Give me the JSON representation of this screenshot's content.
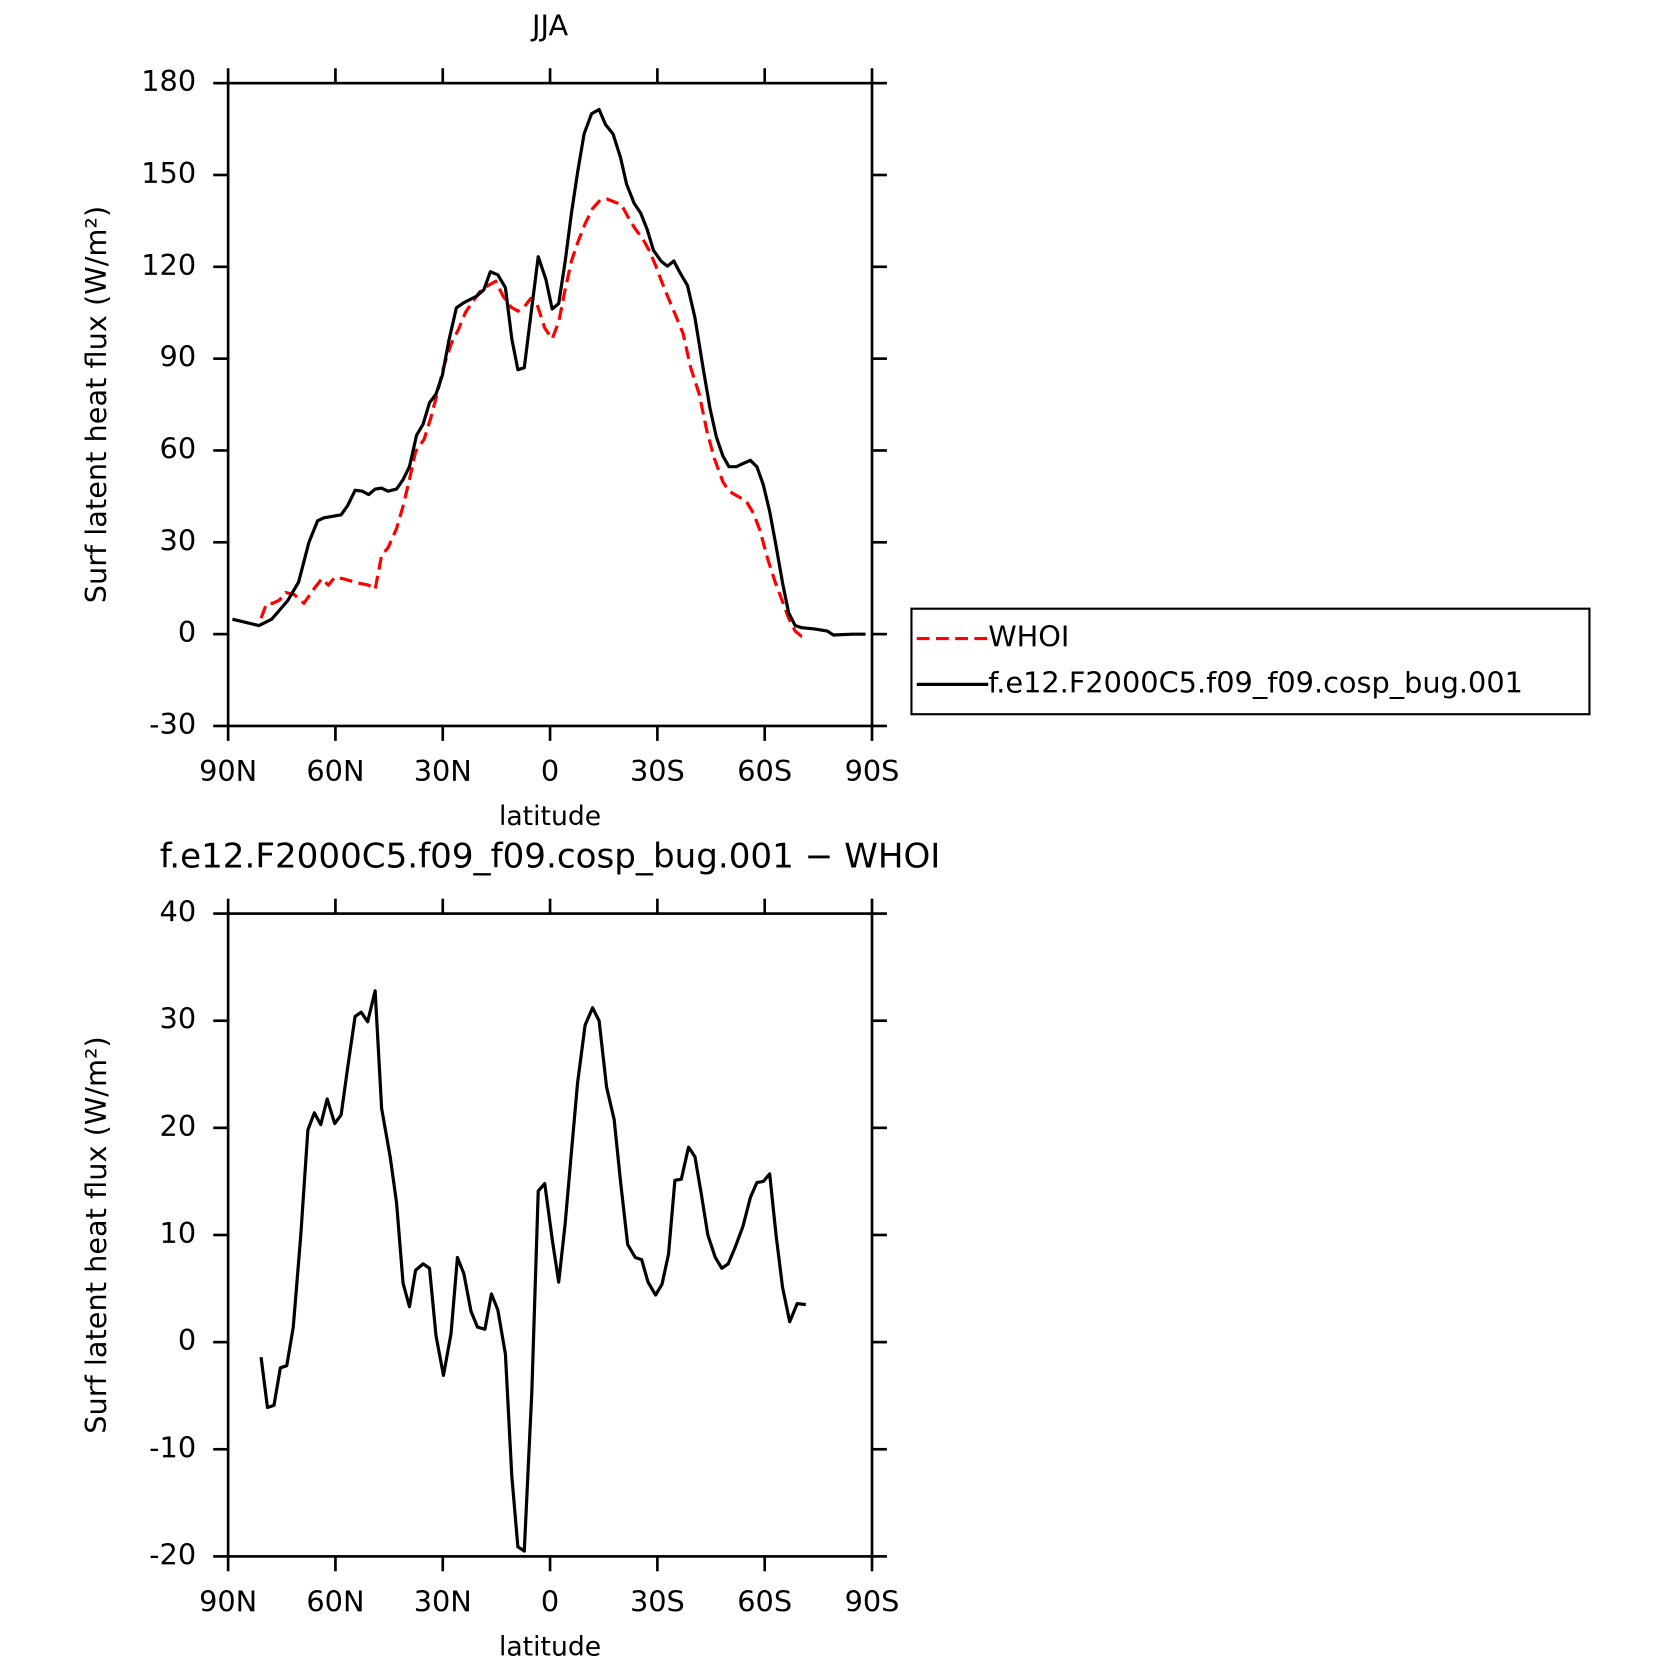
{
  "chart_data": [
    {
      "type": "line",
      "title": "JJA",
      "xlabel": "latitude",
      "ylabel": "Surf latent heat flux (W/m²)",
      "xlim": [
        90,
        -90
      ],
      "ylim": [
        -30,
        180
      ],
      "xticks": [
        {
          "value": 90,
          "label": "90N"
        },
        {
          "value": 60,
          "label": "60N"
        },
        {
          "value": 30,
          "label": "30N"
        },
        0,
        {
          "value": -30,
          "label": "30S"
        },
        {
          "value": -60,
          "label": "60S"
        },
        {
          "value": -90,
          "label": "90S"
        }
      ],
      "yticks": [
        -30,
        0,
        30,
        60,
        90,
        120,
        150,
        180
      ],
      "legend": "right",
      "series": [
        {
          "name": "WHOI",
          "color": "#ff0000",
          "dash": true,
          "x": [
            80.8,
            79.3,
            77.5,
            75.7,
            73.9,
            71.5,
            68.8,
            65.9,
            63.8,
            62,
            60.2,
            57.8,
            53.6,
            50.7,
            48.9,
            47.1,
            45.3,
            42.9,
            41.1,
            39.3,
            37.6,
            35.2,
            33.4,
            31.6,
            29.8,
            27.7,
            25.6,
            23.6,
            21.8,
            19.7,
            17.3,
            15.2,
            13.1,
            11,
            9,
            7.2,
            5.4,
            3.6,
            1.5,
            -0.6,
            -2.4,
            -4.2,
            -6,
            -7.7,
            -9.8,
            -11.9,
            -14,
            -16,
            -18.2,
            -19.9,
            -21.7,
            -23.8,
            -25.9,
            -27.7,
            -29.5,
            -31.3,
            -33.1,
            -35.1,
            -37.2,
            -39.3,
            -41.7,
            -43.8,
            -45.9,
            -48.3,
            -50,
            -52.1,
            -54.8,
            -56.9,
            -58.7,
            -60.8,
            -62.9,
            -64.7,
            -66.7,
            -68.5,
            -70.3,
            -71.5
          ],
          "values": [
            5.2,
            9.8,
            10.1,
            11.1,
            13.6,
            12.9,
            10.1,
            15,
            18.1,
            16,
            18.5,
            18.1,
            16.7,
            16,
            14.6,
            25.8,
            28.2,
            34.5,
            41.8,
            50.5,
            59.6,
            63.7,
            70.4,
            78.4,
            87.1,
            94.7,
            99.6,
            105.2,
            108.3,
            111.8,
            113.9,
            115.3,
            110.4,
            106.9,
            105.5,
            106.9,
            109.7,
            107.6,
            100,
            96.5,
            102,
            112.5,
            121.9,
            127.8,
            134.1,
            139,
            141.8,
            142.1,
            141.1,
            140.4,
            136.5,
            132.4,
            129.2,
            125.4,
            120.5,
            114.9,
            109.7,
            104.1,
            98.2,
            87.1,
            78.4,
            66.5,
            57.5,
            49.8,
            46.7,
            45.3,
            43.5,
            39.4,
            33.8,
            24.7,
            17.1,
            11.5,
            5.2,
            1,
            -0.7,
            -1
          ]
        },
        {
          "name": "f.e12.F2000C5.f09_f09.cosp_bug.001",
          "color": "#000000",
          "dash": false,
          "x": [
            88.8,
            81.4,
            77.8,
            73.3,
            70.3,
            67.4,
            65,
            63.2,
            58.4,
            56.6,
            54.5,
            52.5,
            50.7,
            48.9,
            47.1,
            45.3,
            42.9,
            41.1,
            39.3,
            37.3,
            35.5,
            33.7,
            31.9,
            30.1,
            28.3,
            26.2,
            24.1,
            20.6,
            18.5,
            16.7,
            14.6,
            12.5,
            10.7,
            9,
            7.2,
            5.4,
            3.3,
            1.2,
            -0.6,
            -2.4,
            -4.2,
            -6,
            -7.7,
            -9.5,
            -11.6,
            -13.7,
            -15.5,
            -17.6,
            -19.7,
            -21.4,
            -23.5,
            -25.3,
            -27.1,
            -28.9,
            -31,
            -32.8,
            -34.6,
            -36.3,
            -38.4,
            -40.5,
            -42.9,
            -44.7,
            -46.5,
            -48.3,
            -50,
            -52.1,
            -53.9,
            -56,
            -57.8,
            -59.6,
            -61.4,
            -63.2,
            -65,
            -66.7,
            -68.5,
            -70.3,
            -73.9,
            -77.5,
            -79.2,
            -84.6,
            -88.2
          ],
          "values": [
            4.9,
            2.8,
            4.9,
            11,
            17,
            30,
            37,
            38,
            39,
            42,
            47,
            46.7,
            45.6,
            47.4,
            47.7,
            46.7,
            47.4,
            50.5,
            54.7,
            65,
            68.6,
            75.6,
            78.4,
            84.6,
            95.8,
            106.6,
            108.3,
            110.4,
            112.5,
            118.4,
            117.4,
            113.2,
            96.5,
            86.4,
            87,
            104,
            123.3,
            116,
            106.2,
            108,
            121.6,
            137.6,
            150.8,
            163.4,
            170,
            171.4,
            166.5,
            163.4,
            155.7,
            147,
            140.7,
            137.6,
            132.4,
            125.4,
            121.9,
            120.2,
            121.9,
            118.1,
            113.9,
            103.4,
            86,
            73.8,
            64.4,
            58.2,
            54.7,
            54.7,
            55.7,
            56.8,
            54.7,
            48.8,
            40.1,
            28.6,
            16.7,
            7,
            2.8,
            2.1,
            1.7,
            1,
            -0.3,
            0,
            0
          ]
        }
      ]
    },
    {
      "type": "line",
      "title": "f.e12.F2000C5.f09_f09.cosp_bug.001 − WHOI",
      "xlabel": "latitude",
      "ylabel": "Surf latent heat flux (W/m²)",
      "xlim": [
        90,
        -90
      ],
      "ylim": [
        -20,
        40
      ],
      "xticks": [
        {
          "value": 90,
          "label": "90N"
        },
        {
          "value": 60,
          "label": "60N"
        },
        {
          "value": 30,
          "label": "30N"
        },
        0,
        {
          "value": -30,
          "label": "30S"
        },
        {
          "value": -60,
          "label": "60S"
        },
        {
          "value": -90,
          "label": "90S"
        }
      ],
      "yticks": [
        -20,
        -10,
        0,
        10,
        20,
        30,
        40
      ],
      "series": [
        {
          "color": "#000000",
          "dash": false,
          "x": [
            80.8,
            79,
            77.2,
            75.4,
            73.6,
            71.8,
            69.7,
            67.7,
            65.9,
            64.1,
            62.3,
            60.2,
            58.4,
            56.6,
            54.5,
            52.8,
            51,
            48.9,
            47.1,
            44.7,
            42.9,
            41.1,
            39.3,
            37.6,
            35.5,
            33.7,
            31.9,
            29.8,
            27.7,
            25.9,
            24.1,
            22.1,
            20.3,
            18.2,
            16.4,
            14.6,
            12.5,
            10.7,
            9,
            7.2,
            5.1,
            3.3,
            1.5,
            -0.6,
            -2.4,
            -4.2,
            -6,
            -7.7,
            -9.8,
            -11.9,
            -13.7,
            -15.8,
            -17.9,
            -19.7,
            -21.7,
            -23.8,
            -25.6,
            -27.4,
            -29.5,
            -31.3,
            -33.1,
            -34.9,
            -36.7,
            -38.7,
            -40.5,
            -42.3,
            -44.1,
            -46.2,
            -48,
            -49.8,
            -51.8,
            -53.9,
            -56,
            -57.8,
            -59.6,
            -61.4,
            -63.2,
            -65,
            -67,
            -69.1,
            -71.5
          ],
          "values": [
            -1.4,
            -6.1,
            -5.9,
            -2.4,
            -2.2,
            1.4,
            9.9,
            19.8,
            21.4,
            20.3,
            22.7,
            20.4,
            21.2,
            25.6,
            30.4,
            30.8,
            29.9,
            32.8,
            21.8,
            17.3,
            13,
            5.5,
            3.3,
            6.7,
            7.3,
            6.9,
            0.6,
            -3.1,
            0.8,
            7.9,
            6.4,
            2.9,
            1.4,
            1.2,
            4.5,
            3,
            -1.1,
            -12.5,
            -19.1,
            -19.5,
            -4.6,
            14.1,
            14.8,
            9.6,
            5.6,
            11,
            17.8,
            24.2,
            29.6,
            31.2,
            30,
            23.8,
            20.8,
            15,
            9.1,
            7.9,
            7.7,
            5.6,
            4.4,
            5.4,
            8.2,
            15.1,
            15.2,
            18.2,
            17.3,
            13.8,
            10,
            7.9,
            6.9,
            7.3,
            8.9,
            10.8,
            13.5,
            14.9,
            15,
            15.7,
            9.9,
            5.1,
            1.9,
            3.6,
            3.5
          ]
        }
      ]
    }
  ]
}
